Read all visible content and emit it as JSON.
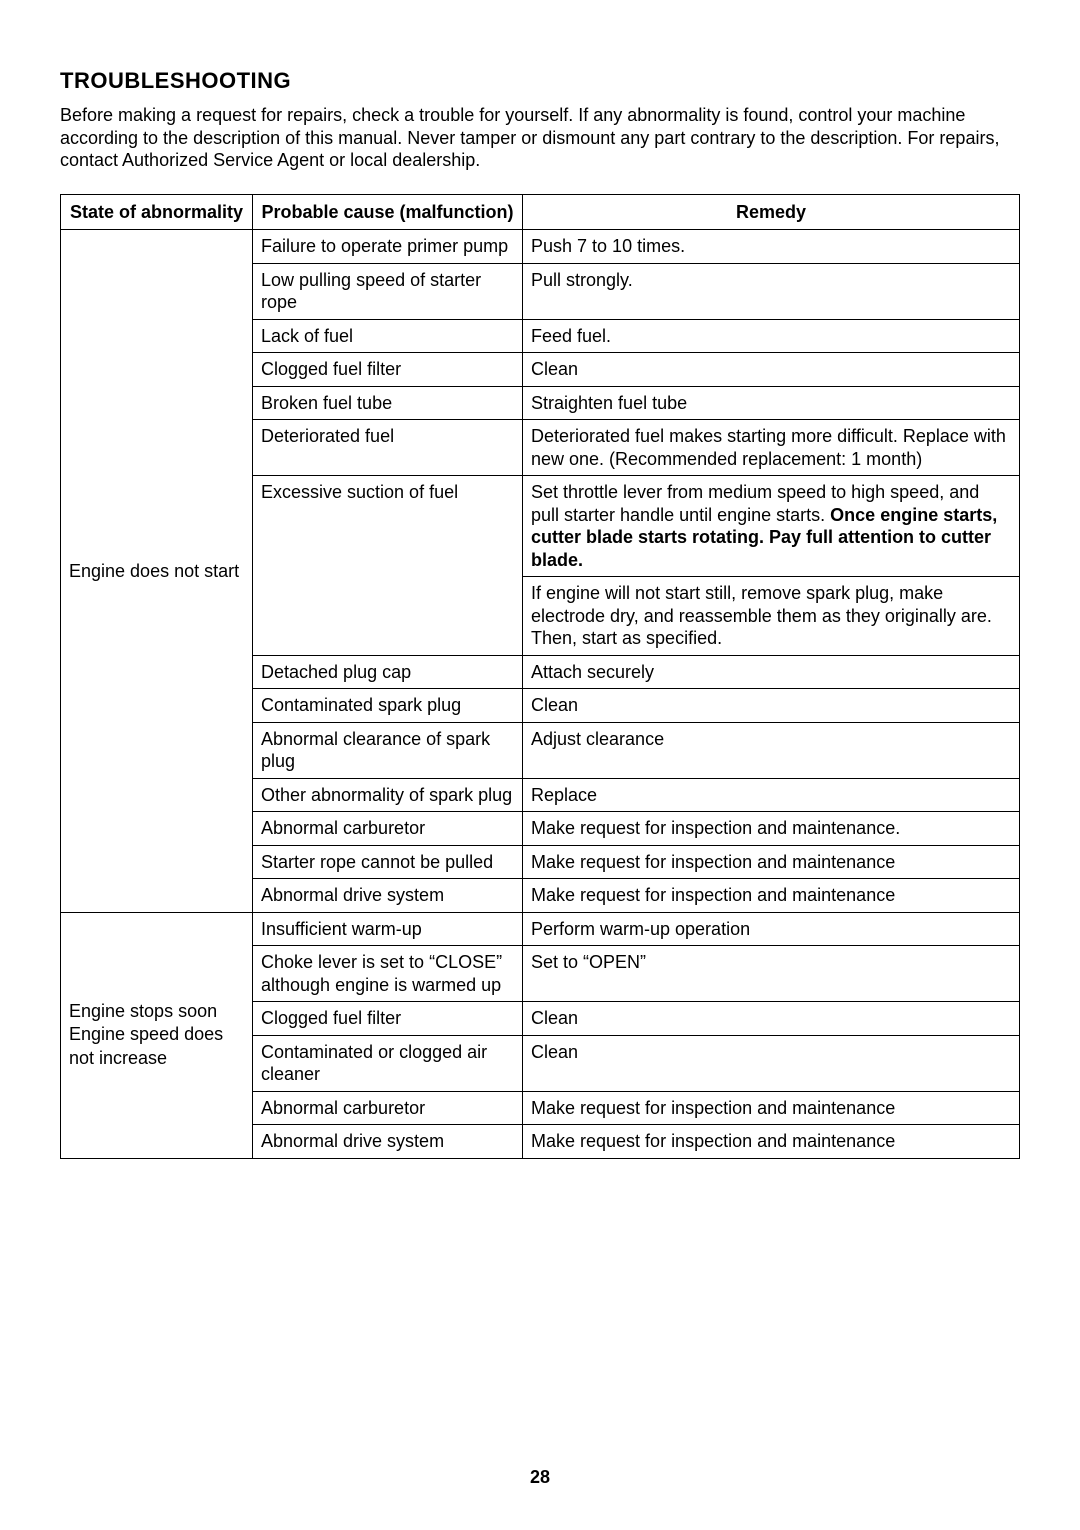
{
  "heading": "TROUBLESHOOTING",
  "intro": "Before making a request for repairs, check a trouble for yourself. If any abnormality is found, control your machine according to the description of this manual. Never tamper or dismount any part contrary to the description. For repairs, contact Authorized Service Agent or local dealership.",
  "headers": {
    "state": "State of abnormality",
    "cause": "Probable cause (malfunction)",
    "remedy": "Remedy"
  },
  "group1": {
    "state": "Engine does not start",
    "r1": {
      "cause": "Failure to operate primer pump",
      "remedy": "Push 7 to 10 times."
    },
    "r2": {
      "cause": "Low pulling speed of starter rope",
      "remedy": "Pull strongly."
    },
    "r3": {
      "cause": "Lack of fuel",
      "remedy": "Feed fuel."
    },
    "r4": {
      "cause": "Clogged fuel filter",
      "remedy": "Clean"
    },
    "r5": {
      "cause": "Broken fuel tube",
      "remedy": "Straighten fuel tube"
    },
    "r6": {
      "cause": "Deteriorated fuel",
      "remedy": "Deteriorated fuel makes starting more difficult. Replace with new one. (Recommended replacement: 1 month)"
    },
    "r7": {
      "cause": "Excessive suction of fuel",
      "remedy_a_pre": "Set throttle lever from medium speed to high speed, and pull starter handle until engine starts. ",
      "remedy_a_bold": "Once engine starts, cutter blade starts rotating. Pay full attention to cutter blade.",
      "remedy_b": "If engine will not start still, remove spark plug, make electrode dry, and reassemble them as they originally are. Then, start as specified."
    },
    "r8": {
      "cause": "Detached plug cap",
      "remedy": "Attach securely"
    },
    "r9": {
      "cause": "Contaminated spark plug",
      "remedy": "Clean"
    },
    "r10": {
      "cause": "Abnormal clearance of spark plug",
      "remedy": "Adjust clearance"
    },
    "r11": {
      "cause": "Other abnormality of spark plug",
      "remedy": "Replace"
    },
    "r12": {
      "cause": "Abnormal carburetor",
      "remedy": "Make request for inspection and maintenance."
    },
    "r13": {
      "cause": "Starter rope cannot be pulled",
      "remedy": "Make request for inspection and maintenance"
    },
    "r14": {
      "cause": "Abnormal drive system",
      "remedy": "Make request for inspection and maintenance"
    }
  },
  "group2": {
    "state_l1": "Engine stops soon",
    "state_l2": "Engine speed does not increase",
    "r1": {
      "cause": "Insufficient warm-up",
      "remedy": "Perform warm-up operation"
    },
    "r2": {
      "cause": "Choke lever is set to “CLOSE” although engine is warmed up",
      "remedy": "Set to “OPEN”"
    },
    "r3": {
      "cause": "Clogged fuel filter",
      "remedy": "Clean"
    },
    "r4": {
      "cause": "Contaminated or clogged air cleaner",
      "remedy": "Clean"
    },
    "r5": {
      "cause": "Abnormal carburetor",
      "remedy": "Make request for inspection and maintenance"
    },
    "r6": {
      "cause": "Abnormal drive system",
      "remedy": "Make request for inspection and maintenance"
    }
  },
  "page_number": "28",
  "colors": {
    "bg": "#ffffff",
    "text": "#000000",
    "border": "#000000"
  }
}
